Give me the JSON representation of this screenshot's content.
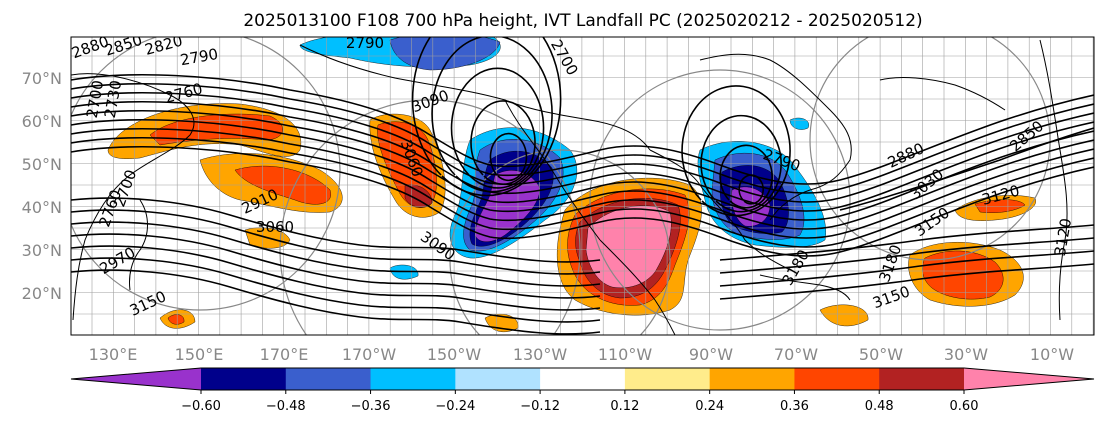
{
  "title": "2025013100 F108 700 hPa height, IVT Landfall PC (2025020212 - 2025020512)",
  "map": {
    "lat_ticks": [
      "70°N",
      "60°N",
      "50°N",
      "40°N",
      "30°N",
      "20°N"
    ],
    "lon_ticks": [
      "130°E",
      "150°E",
      "170°E",
      "170°W",
      "150°W",
      "130°W",
      "110°W",
      "90°W",
      "70°W",
      "50°W",
      "30°W",
      "10°W"
    ],
    "contour_labels": [
      "2880",
      "2850",
      "2820",
      "2790",
      "2790",
      "2760",
      "2700",
      "2730",
      "2700",
      "3090",
      "3060",
      "2910",
      "2970",
      "3060",
      "3090",
      "3150",
      "3150",
      "3180",
      "3150",
      "3120",
      "3030",
      "2880",
      "2850",
      "3120",
      "3180",
      "2790",
      "2700",
      "2760"
    ],
    "colors": {
      "neg_strongest": "#9932cc",
      "neg_strong": "#00008b",
      "neg_mid": "#3a5fcd",
      "neg_weak": "#00bfff",
      "neg_faint": "#b0e2ff",
      "pos_faint": "#ffec8b",
      "pos_weak": "#ffa500",
      "pos_mid": "#ff4500",
      "pos_strong": "#b22222",
      "pos_strongest": "#ff82ab",
      "contour": "#000000",
      "coast": "#000000",
      "grid": "#a0a0a0"
    }
  },
  "colorbar": {
    "colors": [
      "#9932cc",
      "#00008b",
      "#3a5fcd",
      "#00bfff",
      "#b0e2ff",
      "#ffffff",
      "#ffec8b",
      "#ffa500",
      "#ff4500",
      "#b22222",
      "#ff82ab"
    ],
    "ticks": [
      "−0.60",
      "−0.48",
      "−0.36",
      "−0.24",
      "−0.12",
      "0.12",
      "0.24",
      "0.36",
      "0.48",
      "0.60"
    ]
  }
}
